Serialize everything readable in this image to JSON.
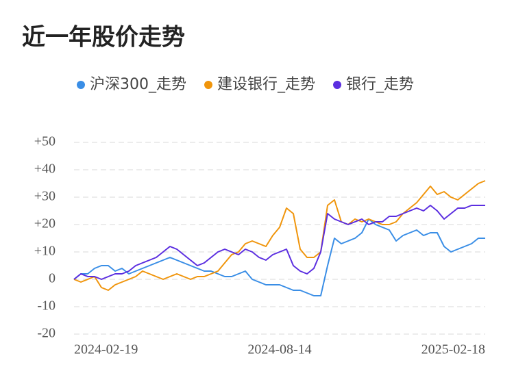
{
  "chart_data": {
    "type": "line",
    "title": "近一年股价走势",
    "categories": [
      "2024-02-19",
      null,
      null,
      null,
      null,
      null,
      null,
      null,
      null,
      null,
      null,
      null,
      null,
      null,
      null,
      null,
      null,
      null,
      null,
      null,
      null,
      null,
      null,
      null,
      null,
      null,
      null,
      null,
      null,
      null,
      "2024-08-14",
      null,
      null,
      null,
      null,
      null,
      null,
      null,
      null,
      null,
      null,
      null,
      null,
      null,
      null,
      null,
      null,
      null,
      null,
      null,
      null,
      null,
      null,
      null,
      null,
      null,
      null,
      null,
      null,
      null,
      "2025-02-18"
    ],
    "series": [
      {
        "name": "沪深300_走势",
        "color": "#3a8ee6",
        "values": [
          0,
          2,
          2,
          4,
          5,
          5,
          3,
          4,
          2,
          3,
          4,
          5,
          6,
          7,
          8,
          7,
          6,
          5,
          4,
          3,
          3,
          2,
          1,
          1,
          2,
          3,
          0,
          -1,
          -2,
          -2,
          -2,
          -3,
          -4,
          -4,
          -5,
          -6,
          -6,
          5,
          15,
          13,
          14,
          15,
          17,
          22,
          20,
          19,
          18,
          14,
          16,
          17,
          18,
          16,
          17,
          17,
          12,
          10,
          11,
          12,
          13,
          15,
          15
        ]
      },
      {
        "name": "建设银行_走势",
        "color": "#f0950c",
        "values": [
          0,
          -1,
          0,
          1,
          -3,
          -4,
          -2,
          -1,
          0,
          1,
          3,
          2,
          1,
          0,
          1,
          2,
          1,
          0,
          1,
          1,
          2,
          3,
          6,
          9,
          10,
          13,
          14,
          13,
          12,
          16,
          19,
          26,
          24,
          11,
          8,
          8,
          10,
          27,
          29,
          21,
          20,
          22,
          21,
          22,
          21,
          20,
          20,
          21,
          24,
          26,
          28,
          31,
          34,
          31,
          32,
          30,
          29,
          31,
          33,
          35,
          36
        ]
      },
      {
        "name": "银行_走势",
        "color": "#5b2ee0",
        "values": [
          0,
          2,
          1,
          1,
          0,
          1,
          2,
          2,
          3,
          5,
          6,
          7,
          8,
          10,
          12,
          11,
          9,
          7,
          5,
          6,
          8,
          10,
          11,
          10,
          9,
          11,
          10,
          8,
          7,
          9,
          10,
          11,
          5,
          3,
          2,
          4,
          10,
          24,
          22,
          21,
          20,
          21,
          22,
          20,
          21,
          21,
          23,
          23,
          24,
          25,
          26,
          25,
          27,
          25,
          22,
          24,
          26,
          26,
          27,
          27,
          27
        ]
      }
    ],
    "ylim": [
      -20,
      50
    ],
    "yticks": [
      {
        "value": 50,
        "label": "+50"
      },
      {
        "value": 40,
        "label": "+40"
      },
      {
        "value": 30,
        "label": "+30"
      },
      {
        "value": 20,
        "label": "+20"
      },
      {
        "value": 10,
        "label": "+10"
      },
      0,
      -10,
      -20
    ],
    "grid": true
  }
}
